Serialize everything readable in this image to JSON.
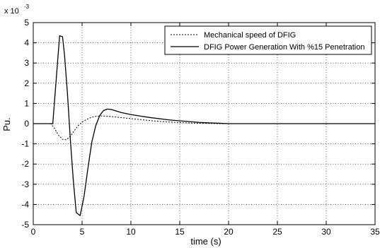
{
  "chart_data": {
    "type": "line",
    "xlabel": "time (s)",
    "ylabel": "Pu.",
    "y_exponent_base": "x 10",
    "y_exponent": "-3",
    "xlim": [
      0,
      35
    ],
    "ylim": [
      -5,
      5
    ],
    "grid": true,
    "x_ticks": [
      "0",
      "5",
      "10",
      "15",
      "20",
      "25",
      "30",
      "35"
    ],
    "y_ticks": [
      "5",
      "4",
      "3",
      "2",
      "1",
      "0",
      "-1",
      "-2",
      "-3",
      "-4",
      "-5"
    ],
    "legend_position": "top-right",
    "series": [
      {
        "name": "Mechanical speed of DFIG",
        "line_style": "dotted",
        "color": "#000000",
        "x": [
          0,
          1.8,
          2.2,
          2.6,
          3.0,
          3.4,
          3.8,
          4.2,
          4.6,
          5.0,
          5.5,
          6.0,
          6.5,
          7.0,
          7.5,
          8.0,
          9.0,
          10.0,
          11.0,
          12.0,
          13.0,
          14.0,
          15.0,
          16.0,
          17.0,
          18.0,
          19.0,
          20.0,
          22.0,
          25.0,
          30.0,
          35.0
        ],
        "values": [
          0,
          0,
          -0.25,
          -0.58,
          -0.78,
          -0.8,
          -0.62,
          -0.35,
          -0.1,
          0.08,
          0.22,
          0.32,
          0.37,
          0.38,
          0.37,
          0.35,
          0.3,
          0.25,
          0.2,
          0.15,
          0.11,
          0.08,
          0.05,
          0.03,
          0.02,
          0.01,
          0.0,
          0.0,
          0.0,
          0.0,
          0.0,
          0.0
        ]
      },
      {
        "name": "DFIG Power Generation With %15 Penetration",
        "line_style": "solid",
        "color": "#000000",
        "x": [
          0,
          2.0,
          2.4,
          2.7,
          3.0,
          3.2,
          3.5,
          3.8,
          4.1,
          4.4,
          4.8,
          5.2,
          5.6,
          6.0,
          6.4,
          6.8,
          7.2,
          7.6,
          8.0,
          9.0,
          10.0,
          11.0,
          12.0,
          13.0,
          14.0,
          15.0,
          16.0,
          17.0,
          18.0,
          19.0,
          20.0,
          22.0,
          25.0,
          30.0,
          35.0
        ],
        "values": [
          0,
          0,
          2.5,
          4.35,
          4.3,
          3.4,
          1.5,
          -0.8,
          -2.8,
          -4.4,
          -4.55,
          -3.6,
          -2.2,
          -0.9,
          -0.1,
          0.4,
          0.65,
          0.72,
          0.7,
          0.55,
          0.45,
          0.37,
          0.3,
          0.24,
          0.18,
          0.14,
          0.1,
          0.06,
          0.04,
          0.02,
          0.0,
          0.0,
          0.0,
          0.0,
          0.0
        ]
      }
    ]
  }
}
